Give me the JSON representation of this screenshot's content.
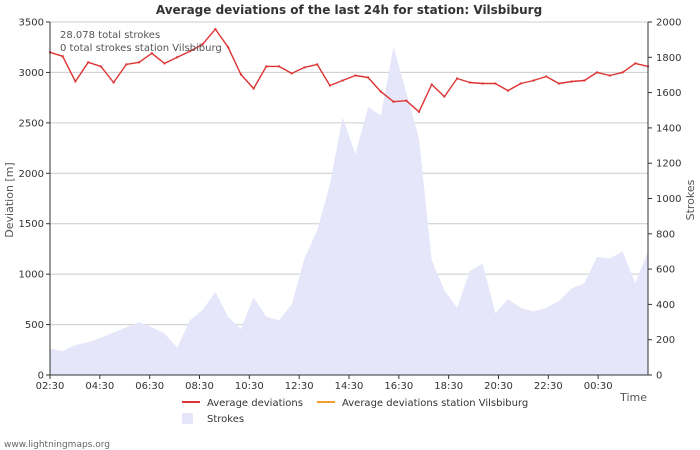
{
  "chart_data": {
    "type": "line",
    "title": "Average deviations of the last 24h for station: Vilsbiburg",
    "ylabel": "Deviation  [m]",
    "y2label": "Strokes",
    "xlabel": "Time",
    "ylim": [
      0,
      3500
    ],
    "y2lim": [
      0,
      2000
    ],
    "yticks": [
      "0",
      "500",
      "1000",
      "1500",
      "2000",
      "2500",
      "3000",
      "3500"
    ],
    "y2ticks": [
      "0",
      "200",
      "400",
      "600",
      "800",
      "1000",
      "1200",
      "1400",
      "1600",
      "1800",
      "2000"
    ],
    "xticks": [
      "02:30",
      "04:30",
      "06:30",
      "08:30",
      "10:30",
      "12:30",
      "14:30",
      "16:30",
      "18:30",
      "20:30",
      "22:30",
      "00:30"
    ],
    "annotations": [
      "28.078 total strokes",
      "0 total strokes station Vilsbiburg"
    ],
    "legend": [
      "Average deviations",
      "Average deviations station Vilsbiburg",
      "Strokes"
    ],
    "colors": {
      "average": "#dd3333",
      "station": "#f0a030",
      "strokes_fill": "#e6e6fa",
      "grid": "#cccccc",
      "axis": "#333333"
    },
    "series": [
      {
        "name": "Average deviations",
        "values": [
          3200,
          3160,
          2910,
          3100,
          3060,
          2900,
          3080,
          3100,
          3190,
          3090,
          3150,
          3210,
          3280,
          3430,
          3250,
          2980,
          2840,
          3060,
          3060,
          2990,
          3050,
          3080,
          2870,
          2920,
          2970,
          2950,
          2810,
          2710,
          2720,
          2610,
          2880,
          2760,
          2940,
          2900,
          2890,
          2890,
          2820,
          2890,
          2920,
          2960,
          2890,
          2910,
          2920,
          3000,
          2970,
          3000,
          3090,
          3060
        ]
      },
      {
        "name": "Strokes",
        "values": [
          150,
          135,
          170,
          185,
          210,
          240,
          270,
          300,
          270,
          235,
          155,
          310,
          370,
          470,
          330,
          260,
          440,
          330,
          310,
          400,
          660,
          820,
          1080,
          1460,
          1250,
          1520,
          1470,
          1860,
          1600,
          1340,
          650,
          480,
          380,
          590,
          630,
          350,
          430,
          380,
          360,
          380,
          420,
          490,
          520,
          670,
          660,
          700,
          520,
          700
        ]
      }
    ]
  },
  "footer": {
    "brand": "www.lightningmaps.org"
  }
}
